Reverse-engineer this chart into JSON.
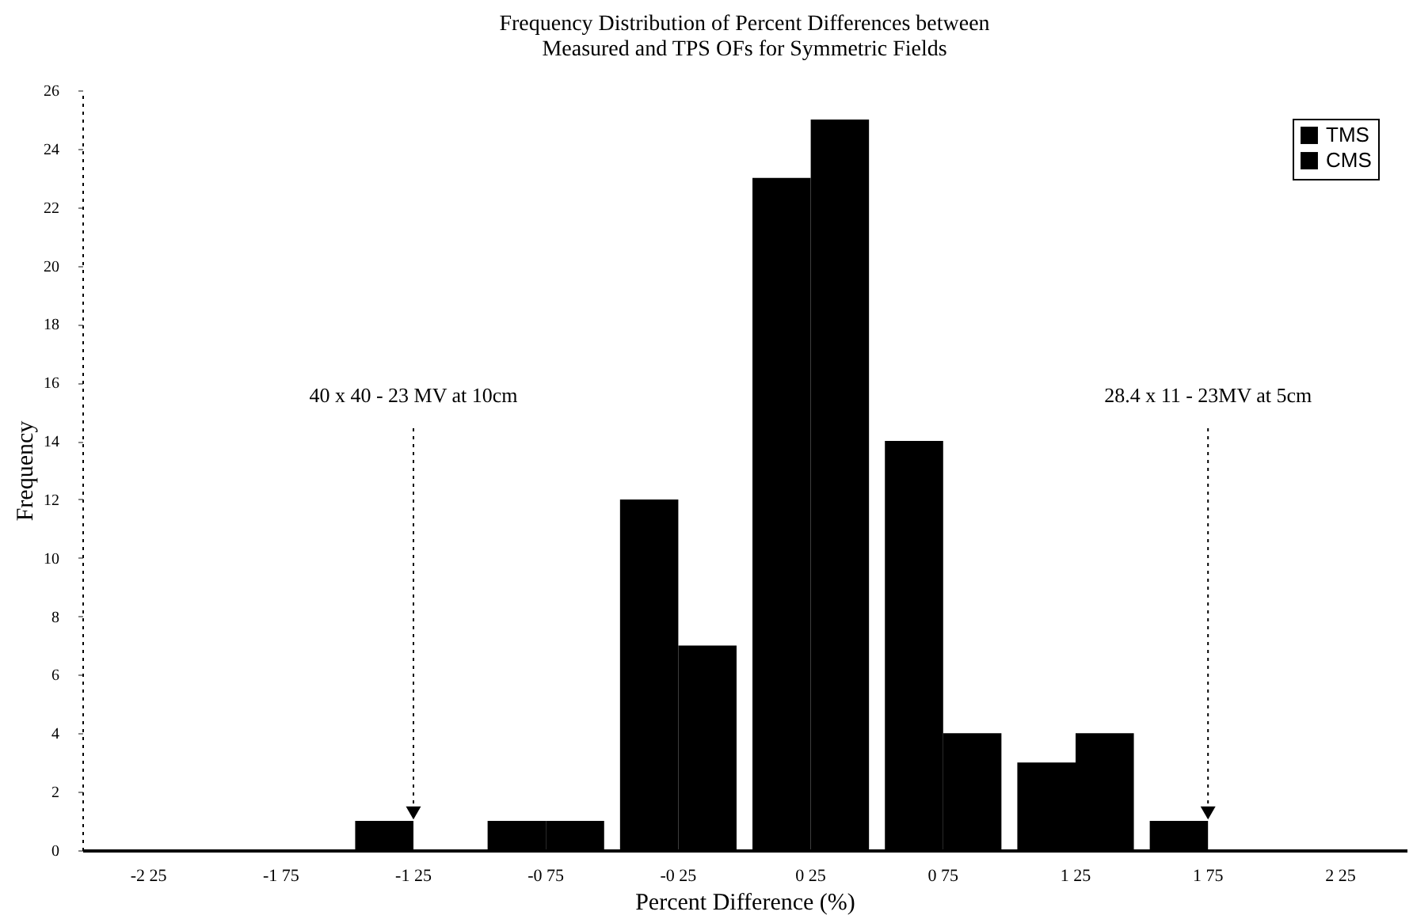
{
  "chart_data": {
    "type": "bar",
    "title": [
      "Frequency Distribution of Percent Differences between",
      "Measured and TPS OFs for Symmetric Fields"
    ],
    "xlabel": "Percent Difference (%)",
    "ylabel": "Frequency",
    "categories": [
      "-2 25",
      "-1 75",
      "-1 25",
      "-0 75",
      "-0 25",
      "0 25",
      "0 75",
      "1 25",
      "1 75",
      "2 25"
    ],
    "series": [
      {
        "name": "TMS",
        "color": "#000000",
        "values": [
          0,
          0,
          1,
          1,
          12,
          23,
          14,
          3,
          1,
          0
        ]
      },
      {
        "name": "CMS",
        "color": "#000000",
        "values": [
          0,
          0,
          0,
          1,
          7,
          25,
          4,
          4,
          0,
          0
        ]
      }
    ],
    "ylim": [
      0,
      26
    ],
    "yticks": [
      0,
      2,
      4,
      6,
      8,
      10,
      12,
      14,
      16,
      18,
      20,
      22,
      24,
      26
    ],
    "legend": "top right",
    "annotations": [
      {
        "text": "40 x 40 - 23 MV at 10cm",
        "x": "-1 25",
        "y": 1
      },
      {
        "text": "28.4 x 11 - 23MV at 5cm",
        "x": "1 75",
        "y": 1
      }
    ]
  }
}
